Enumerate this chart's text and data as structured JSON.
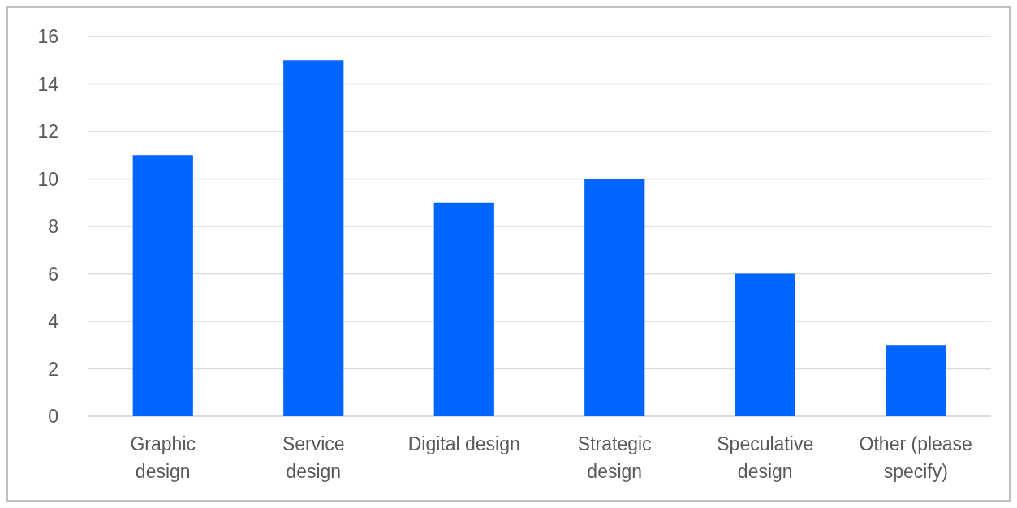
{
  "chart_data": {
    "type": "bar",
    "categories": [
      "Graphic design",
      "Service design",
      "Digital design",
      "Strategic design",
      "Speculative design",
      "Other (please specify)"
    ],
    "values": [
      11,
      15,
      9,
      10,
      6,
      3
    ],
    "color": "#0066ff",
    "ylim": [
      0,
      16
    ],
    "yticks": [
      0,
      2,
      4,
      6,
      8,
      10,
      12,
      14,
      16
    ],
    "grid": "y"
  }
}
